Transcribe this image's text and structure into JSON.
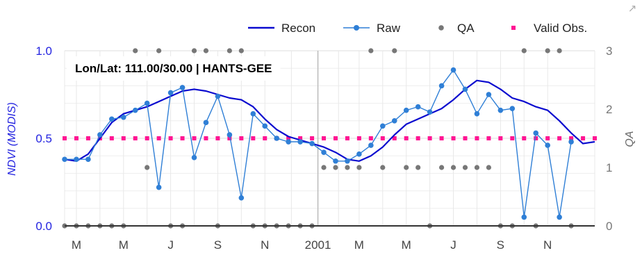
{
  "chart_data": {
    "type": "line",
    "annotation": "Lon/Lat: 111.00/30.00 | HANTS-GEE",
    "ylabel": "NDVI (MODIS)",
    "ylabel_right": "QA",
    "ylim": [
      0.0,
      1.0
    ],
    "yticks": [
      "0.0",
      "0.5",
      "1.0"
    ],
    "ylim_right": [
      0,
      3
    ],
    "yticks_right": [
      "0",
      "1",
      "2",
      "3"
    ],
    "xlim": [
      0,
      45
    ],
    "xticks": [
      {
        "pos": 1,
        "label": "M"
      },
      {
        "pos": 5,
        "label": "M"
      },
      {
        "pos": 9,
        "label": "J"
      },
      {
        "pos": 13,
        "label": "S"
      },
      {
        "pos": 17,
        "label": "N"
      },
      {
        "pos": 21.5,
        "label": "2001"
      },
      {
        "pos": 25,
        "label": "M"
      },
      {
        "pos": 29,
        "label": "M"
      },
      {
        "pos": 33,
        "label": "J"
      },
      {
        "pos": 37,
        "label": "S"
      },
      {
        "pos": 41,
        "label": "N"
      }
    ],
    "grid": true,
    "legend_position": "top-right",
    "colors": {
      "recon": "#0a0acf",
      "raw": "#2f7fd6",
      "qa": "#777777",
      "valid": "#ff1493",
      "axis_left": "#2323e0",
      "axis_right": "#777777"
    },
    "series": [
      {
        "name": "Recon",
        "x": [
          0,
          1,
          2,
          3,
          4,
          5,
          6,
          7,
          8,
          9,
          10,
          11,
          12,
          13,
          14,
          15,
          16,
          17,
          18,
          19,
          20,
          21,
          22,
          23,
          24,
          25,
          26,
          27,
          28,
          29,
          30,
          31,
          32,
          33,
          34,
          35,
          36,
          37,
          38,
          39,
          40,
          41,
          42,
          43,
          44,
          45
        ],
        "y": [
          0.38,
          0.37,
          0.41,
          0.5,
          0.59,
          0.64,
          0.66,
          0.68,
          0.71,
          0.74,
          0.77,
          0.78,
          0.77,
          0.75,
          0.73,
          0.72,
          0.68,
          0.61,
          0.55,
          0.51,
          0.49,
          0.47,
          0.45,
          0.42,
          0.38,
          0.37,
          0.4,
          0.45,
          0.52,
          0.58,
          0.61,
          0.64,
          0.67,
          0.72,
          0.78,
          0.83,
          0.82,
          0.78,
          0.73,
          0.71,
          0.68,
          0.66,
          0.6,
          0.53,
          0.47,
          0.48
        ]
      },
      {
        "name": "Raw",
        "x": [
          0,
          1,
          2,
          3,
          4,
          5,
          6,
          7,
          8,
          9,
          10,
          11,
          12,
          13,
          14,
          15,
          16,
          17,
          18,
          19,
          20,
          21,
          22,
          23,
          24,
          25,
          26,
          27,
          28,
          29,
          30,
          31,
          32,
          33,
          34,
          35,
          36,
          37,
          38,
          39,
          40,
          41,
          42,
          43,
          44,
          45
        ],
        "y": [
          0.38,
          0.38,
          0.38,
          0.52,
          0.61,
          0.62,
          0.66,
          0.7,
          0.22,
          0.76,
          0.79,
          0.39,
          0.59,
          0.74,
          0.52,
          0.16,
          0.64,
          0.57,
          0.5,
          0.48,
          0.48,
          0.47,
          0.42,
          0.37,
          0.37,
          0.41,
          0.46,
          0.57,
          0.6,
          0.66,
          0.68,
          0.65,
          0.8,
          0.89,
          0.78,
          0.64,
          0.75,
          0.66,
          0.67,
          0.05,
          0.53,
          0.46,
          0.05,
          0.48,
          null,
          null
        ]
      },
      {
        "name": "QA",
        "x": [
          0,
          1,
          2,
          3,
          4,
          5,
          6,
          7,
          8,
          9,
          10,
          11,
          12,
          13,
          14,
          15,
          16,
          17,
          18,
          19,
          20,
          21,
          22,
          23,
          24,
          25,
          26,
          27,
          28,
          29,
          30,
          31,
          32,
          33,
          34,
          35,
          36,
          37,
          38,
          39,
          40,
          41,
          42,
          43,
          44,
          45
        ],
        "y": [
          0,
          0,
          0,
          0,
          0,
          0,
          3,
          1,
          3,
          0,
          0,
          3,
          3,
          0,
          3,
          3,
          0,
          0,
          0,
          0,
          0,
          0,
          1,
          1,
          1,
          1,
          3,
          1,
          3,
          1,
          1,
          0,
          1,
          1,
          1,
          1,
          1,
          0,
          0,
          3,
          0,
          3,
          3,
          0,
          null,
          null
        ]
      },
      {
        "name": "Valid Obs.",
        "x": [
          0,
          1,
          2,
          3,
          4,
          5,
          6,
          7,
          8,
          9,
          10,
          11,
          12,
          13,
          14,
          15,
          16,
          17,
          18,
          19,
          20,
          21,
          22,
          23,
          24,
          25,
          26,
          27,
          28,
          29,
          30,
          31,
          32,
          33,
          34,
          35,
          36,
          37,
          38,
          39,
          40,
          41,
          42,
          43,
          44,
          45
        ],
        "y": [
          0.5,
          0.5,
          0.5,
          0.5,
          0.5,
          0.5,
          0.5,
          0.5,
          0.5,
          0.5,
          0.5,
          0.5,
          0.5,
          0.5,
          0.5,
          0.5,
          0.5,
          0.5,
          0.5,
          0.5,
          0.5,
          0.5,
          0.5,
          0.5,
          0.5,
          0.5,
          0.5,
          0.5,
          0.5,
          0.5,
          0.5,
          0.5,
          0.5,
          0.5,
          0.5,
          0.5,
          0.5,
          0.5,
          0.5,
          0.5,
          0.5,
          0.5,
          0.5,
          0.5,
          0.5,
          0.5
        ]
      }
    ]
  },
  "ui": {
    "expand_icon": "expand-icon"
  }
}
